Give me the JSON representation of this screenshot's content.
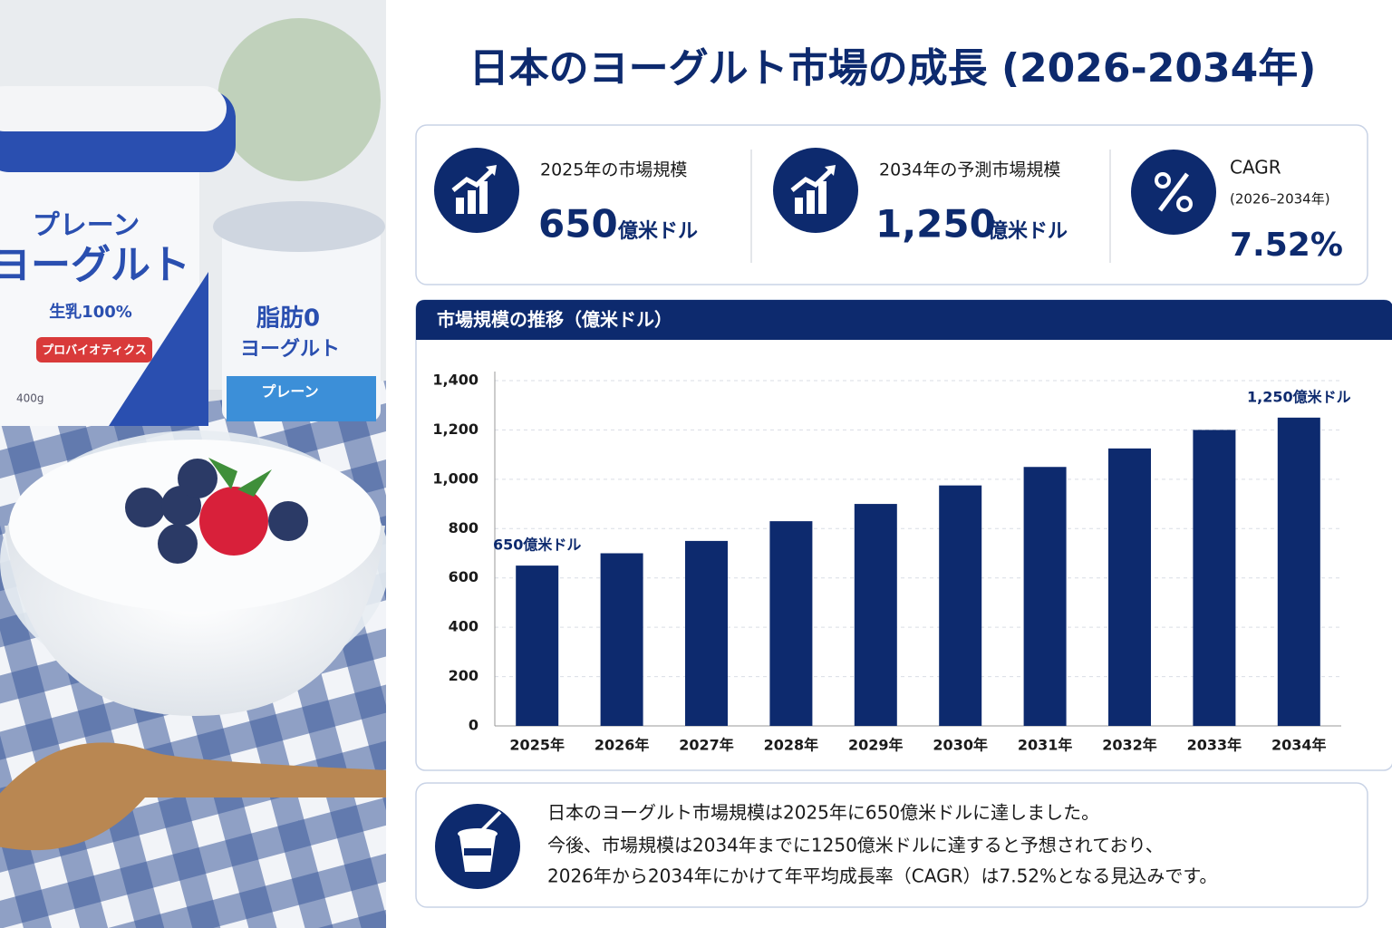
{
  "header": {
    "title": "日本のヨーグルト市場の成長 (2026-2034年)"
  },
  "photo": {
    "labels": [
      "プレーン",
      "ヨーグルト",
      "生乳100%",
      "プロバイオティクス",
      "400g",
      "脂肪0",
      "ヨーグルト",
      "プレーン"
    ]
  },
  "kpis": [
    {
      "label": "2025年の市場規模",
      "value": "650",
      "unit": "億米ドル"
    },
    {
      "label": "2034年の予測市場規模",
      "value": "1,250",
      "unit": "億米ドル"
    },
    {
      "label": "CAGR",
      "sublabel": "(2026–2034年)",
      "value": "7.52%"
    }
  ],
  "chart_data": {
    "type": "bar",
    "title": "市場規模の推移（億米ドル）",
    "categories": [
      "2025年",
      "2026年",
      "2027年",
      "2028年",
      "2029年",
      "2030年",
      "2031年",
      "2032年",
      "2033年",
      "2034年"
    ],
    "values": [
      650,
      700,
      750,
      830,
      900,
      975,
      1050,
      1125,
      1200,
      1250
    ],
    "value_labels": [
      "650億米ドル",
      null,
      null,
      null,
      null,
      null,
      null,
      null,
      null,
      "1,250億米ドル"
    ],
    "color": "#0d2a6e",
    "ylim": [
      0,
      1400
    ],
    "yticks": [
      0,
      200,
      400,
      600,
      800,
      {
        "value": 1000,
        "label": "1,000"
      },
      {
        "value": 1200,
        "label": "1,200"
      },
      {
        "value": 1400,
        "label": "1,400"
      }
    ],
    "grid": true
  },
  "description": {
    "lines": [
      "日本のヨーグルト市場規模は2025年に650億米ドルに達しました。",
      "今後、市場規模は2034年までに1250億米ドルに達すると予想されており、",
      "2026年から2034年にかけて年平均成長率（CAGR）は7.52%となる見込みです。"
    ]
  }
}
